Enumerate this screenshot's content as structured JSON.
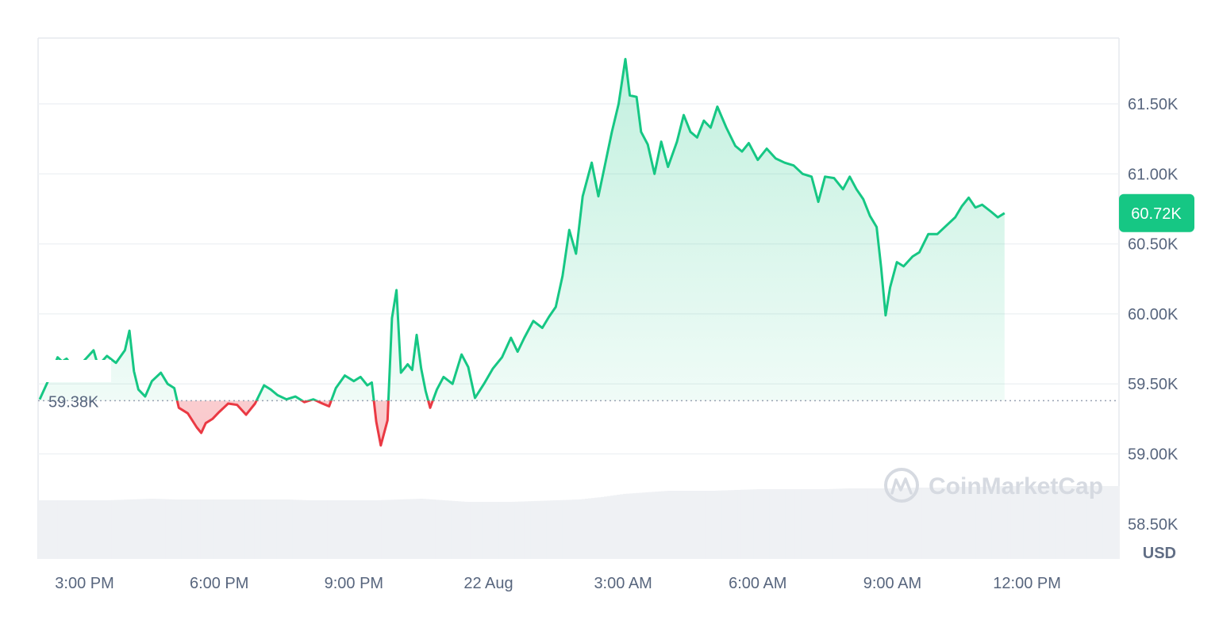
{
  "chart_data": {
    "type": "area",
    "unit": "USD",
    "reference_label": "59.38K",
    "reference_value": 59380,
    "current_label": "60.72K",
    "current_value": 60720,
    "watermark": "CoinMarketCap",
    "ylim": [
      58250,
      61970
    ],
    "y_ticks": [
      {
        "value": 58500,
        "label": "58.50K"
      },
      {
        "value": 59000,
        "label": "59.00K"
      },
      {
        "value": 59500,
        "label": "59.50K"
      },
      {
        "value": 60000,
        "label": "60.00K"
      },
      {
        "value": 60500,
        "label": "60.50K"
      },
      {
        "value": 61000,
        "label": "61.00K"
      },
      {
        "value": 61500,
        "label": "61.50K"
      }
    ],
    "x_ticks": [
      {
        "t": 0.5,
        "label": "3:00 PM"
      },
      {
        "t": 3.5,
        "label": "6:00 PM"
      },
      {
        "t": 6.5,
        "label": "9:00 PM"
      },
      {
        "t": 9.5,
        "label": "22 Aug"
      },
      {
        "t": 12.5,
        "label": "3:00 AM"
      },
      {
        "t": 15.5,
        "label": "6:00 AM"
      },
      {
        "t": 18.5,
        "label": "9:00 AM"
      },
      {
        "t": 21.5,
        "label": "12:00 PM"
      }
    ],
    "x_range": [
      -0.5,
      23.55
    ],
    "colors": {
      "up": "#16c784",
      "down": "#ea3943",
      "volume": "#eff1f4",
      "grid": "#eff2f5"
    },
    "series": [
      {
        "values": [
          [
            -0.5,
            59390
          ],
          [
            -0.3,
            59530
          ],
          [
            -0.1,
            59690
          ],
          [
            0.0,
            59660
          ],
          [
            0.1,
            59680
          ],
          [
            0.3,
            59600
          ],
          [
            0.5,
            59670
          ],
          [
            0.7,
            59740
          ],
          [
            0.8,
            59630
          ],
          [
            1.0,
            59700
          ],
          [
            1.2,
            59650
          ],
          [
            1.4,
            59740
          ],
          [
            1.5,
            59880
          ],
          [
            1.6,
            59590
          ],
          [
            1.7,
            59460
          ],
          [
            1.85,
            59410
          ],
          [
            2.0,
            59520
          ],
          [
            2.2,
            59580
          ],
          [
            2.35,
            59500
          ],
          [
            2.5,
            59470
          ],
          [
            2.6,
            59330
          ],
          [
            2.8,
            59290
          ],
          [
            3.0,
            59190
          ],
          [
            3.1,
            59150
          ],
          [
            3.2,
            59220
          ],
          [
            3.35,
            59250
          ],
          [
            3.5,
            59300
          ],
          [
            3.7,
            59360
          ],
          [
            3.9,
            59350
          ],
          [
            4.1,
            59280
          ],
          [
            4.3,
            59360
          ],
          [
            4.5,
            59490
          ],
          [
            4.65,
            59460
          ],
          [
            4.8,
            59420
          ],
          [
            5.0,
            59390
          ],
          [
            5.2,
            59410
          ],
          [
            5.4,
            59370
          ],
          [
            5.6,
            59390
          ],
          [
            5.8,
            59360
          ],
          [
            5.95,
            59340
          ],
          [
            6.1,
            59470
          ],
          [
            6.3,
            59560
          ],
          [
            6.5,
            59520
          ],
          [
            6.65,
            59550
          ],
          [
            6.8,
            59490
          ],
          [
            6.9,
            59510
          ],
          [
            7.0,
            59230
          ],
          [
            7.1,
            59060
          ],
          [
            7.25,
            59240
          ],
          [
            7.35,
            59970
          ],
          [
            7.45,
            60170
          ],
          [
            7.55,
            59580
          ],
          [
            7.7,
            59640
          ],
          [
            7.8,
            59600
          ],
          [
            7.9,
            59850
          ],
          [
            8.0,
            59610
          ],
          [
            8.1,
            59450
          ],
          [
            8.2,
            59330
          ],
          [
            8.35,
            59460
          ],
          [
            8.5,
            59550
          ],
          [
            8.7,
            59500
          ],
          [
            8.9,
            59710
          ],
          [
            9.05,
            59620
          ],
          [
            9.2,
            59400
          ],
          [
            9.4,
            59500
          ],
          [
            9.6,
            59610
          ],
          [
            9.8,
            59690
          ],
          [
            10.0,
            59830
          ],
          [
            10.15,
            59730
          ],
          [
            10.3,
            59830
          ],
          [
            10.5,
            59950
          ],
          [
            10.7,
            59900
          ],
          [
            10.85,
            59980
          ],
          [
            11.0,
            60050
          ],
          [
            11.15,
            60270
          ],
          [
            11.3,
            60600
          ],
          [
            11.45,
            60430
          ],
          [
            11.6,
            60840
          ],
          [
            11.8,
            61080
          ],
          [
            11.95,
            60840
          ],
          [
            12.1,
            61070
          ],
          [
            12.25,
            61300
          ],
          [
            12.4,
            61500
          ],
          [
            12.55,
            61820
          ],
          [
            12.65,
            61560
          ],
          [
            12.8,
            61550
          ],
          [
            12.9,
            61300
          ],
          [
            13.05,
            61210
          ],
          [
            13.2,
            61000
          ],
          [
            13.35,
            61230
          ],
          [
            13.5,
            61050
          ],
          [
            13.7,
            61230
          ],
          [
            13.85,
            61420
          ],
          [
            14.0,
            61300
          ],
          [
            14.15,
            61260
          ],
          [
            14.3,
            61380
          ],
          [
            14.45,
            61330
          ],
          [
            14.6,
            61480
          ],
          [
            14.8,
            61330
          ],
          [
            15.0,
            61200
          ],
          [
            15.15,
            61160
          ],
          [
            15.3,
            61220
          ],
          [
            15.5,
            61100
          ],
          [
            15.7,
            61180
          ],
          [
            15.9,
            61110
          ],
          [
            16.1,
            61080
          ],
          [
            16.3,
            61060
          ],
          [
            16.5,
            61000
          ],
          [
            16.7,
            60980
          ],
          [
            16.85,
            60800
          ],
          [
            17.0,
            60980
          ],
          [
            17.2,
            60970
          ],
          [
            17.4,
            60890
          ],
          [
            17.55,
            60980
          ],
          [
            17.7,
            60890
          ],
          [
            17.85,
            60820
          ],
          [
            18.0,
            60700
          ],
          [
            18.15,
            60620
          ],
          [
            18.25,
            60330
          ],
          [
            18.35,
            59990
          ],
          [
            18.45,
            60190
          ],
          [
            18.6,
            60370
          ],
          [
            18.75,
            60340
          ],
          [
            18.95,
            60410
          ],
          [
            19.1,
            60440
          ],
          [
            19.3,
            60570
          ],
          [
            19.5,
            60570
          ],
          [
            19.7,
            60630
          ],
          [
            19.9,
            60690
          ],
          [
            20.05,
            60770
          ],
          [
            20.2,
            60830
          ],
          [
            20.35,
            60760
          ],
          [
            20.5,
            60780
          ],
          [
            20.7,
            60730
          ],
          [
            20.85,
            60690
          ],
          [
            21.0,
            60720
          ]
        ]
      }
    ],
    "volume": [
      [
        -0.5,
        0.37
      ],
      [
        0.0,
        0.37
      ],
      [
        0.5,
        0.37
      ],
      [
        1.0,
        0.37
      ],
      [
        1.5,
        0.375
      ],
      [
        2.0,
        0.38
      ],
      [
        2.5,
        0.375
      ],
      [
        3.0,
        0.375
      ],
      [
        3.5,
        0.375
      ],
      [
        4.0,
        0.375
      ],
      [
        4.5,
        0.375
      ],
      [
        5.0,
        0.375
      ],
      [
        5.5,
        0.37
      ],
      [
        6.0,
        0.37
      ],
      [
        6.5,
        0.37
      ],
      [
        7.0,
        0.37
      ],
      [
        7.5,
        0.375
      ],
      [
        8.0,
        0.38
      ],
      [
        8.5,
        0.37
      ],
      [
        9.0,
        0.36
      ],
      [
        9.5,
        0.36
      ],
      [
        10.0,
        0.36
      ],
      [
        10.5,
        0.365
      ],
      [
        11.0,
        0.37
      ],
      [
        11.5,
        0.375
      ],
      [
        12.0,
        0.39
      ],
      [
        12.5,
        0.41
      ],
      [
        13.0,
        0.42
      ],
      [
        13.5,
        0.43
      ],
      [
        14.0,
        0.43
      ],
      [
        14.5,
        0.43
      ],
      [
        15.0,
        0.435
      ],
      [
        15.5,
        0.44
      ],
      [
        16.0,
        0.44
      ],
      [
        16.5,
        0.44
      ],
      [
        17.0,
        0.44
      ],
      [
        17.5,
        0.445
      ],
      [
        18.0,
        0.445
      ],
      [
        18.5,
        0.445
      ],
      [
        19.0,
        0.45
      ],
      [
        19.5,
        0.45
      ],
      [
        20.0,
        0.455
      ],
      [
        20.5,
        0.455
      ],
      [
        21.0,
        0.46
      ]
    ]
  }
}
